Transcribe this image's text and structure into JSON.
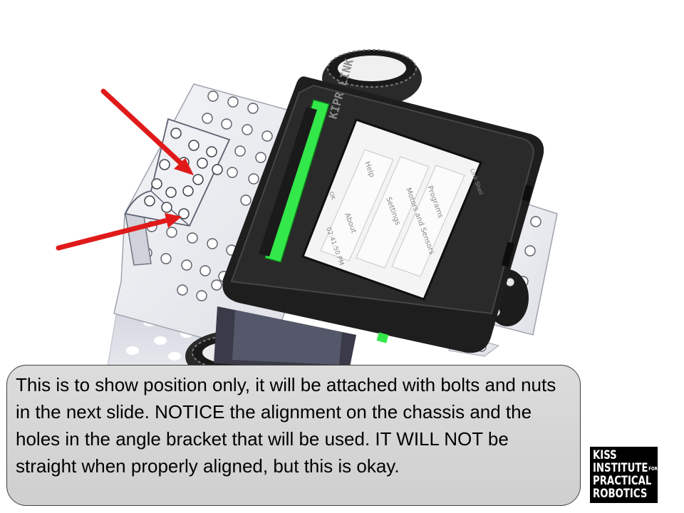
{
  "caption": {
    "text": "This is to show position only, it will be attached with bolts and nuts in the next slide. NOTICE the alignment on the chassis and the holes in the angle bracket that will be used. IT WILL NOT be straight when properly aligned, but this is okay."
  },
  "logo": {
    "line1": "KISS",
    "line2": "INSTITUTE",
    "line2_sup": "FOR",
    "line3": "PRACTICAL",
    "line4": "ROBOTICS"
  },
  "controller": {
    "brand_text": "KIPR LINK",
    "screen": {
      "items": [
        "Programs",
        "Motors and Sensors",
        "Settings",
        "Help",
        "About"
      ],
      "status": "02:41:50 PM",
      "footer": "Link Shell",
      "ok": "OK"
    }
  },
  "colors": {
    "arrow": "#e01a1a",
    "accent_green": "#33e84a",
    "controller_body": "#1e1e1e",
    "caption_bg": "#d6d6d6",
    "metal": "#e9eaee"
  },
  "icons": {
    "arrow_upper": "red-arrow",
    "arrow_lower": "red-arrow"
  }
}
